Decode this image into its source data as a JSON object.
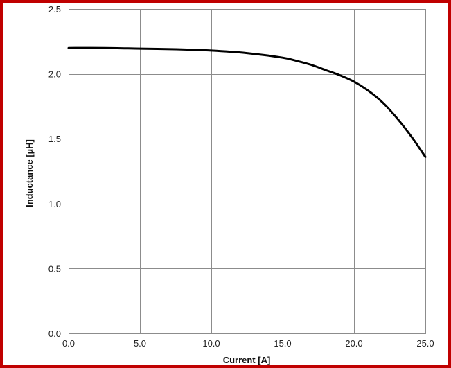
{
  "chart_data": {
    "type": "line",
    "title": "",
    "xlabel": "Current [A]",
    "ylabel": "Inductance [µH]",
    "xlim": [
      0,
      25
    ],
    "ylim": [
      0,
      2.5
    ],
    "xticks": [
      0,
      5,
      10,
      15,
      20,
      25
    ],
    "yticks": [
      0,
      0.5,
      1.0,
      1.5,
      2.0,
      2.5
    ],
    "xtick_labels": [
      "0.0",
      "5.0",
      "10.0",
      "15.0",
      "20.0",
      "25.0"
    ],
    "ytick_labels": [
      "0.0",
      "0.5",
      "1.0",
      "1.5",
      "2.0",
      "2.5"
    ],
    "grid": true,
    "series": [
      {
        "color": "#000000",
        "x": [
          0,
          2.5,
          5,
          7.5,
          10,
          12.5,
          15,
          16,
          17,
          18,
          19,
          20,
          21,
          22,
          23,
          24,
          25
        ],
        "y": [
          2.2,
          2.2,
          2.195,
          2.19,
          2.18,
          2.16,
          2.125,
          2.1,
          2.07,
          2.03,
          1.99,
          1.94,
          1.87,
          1.78,
          1.66,
          1.52,
          1.36
        ]
      }
    ]
  }
}
